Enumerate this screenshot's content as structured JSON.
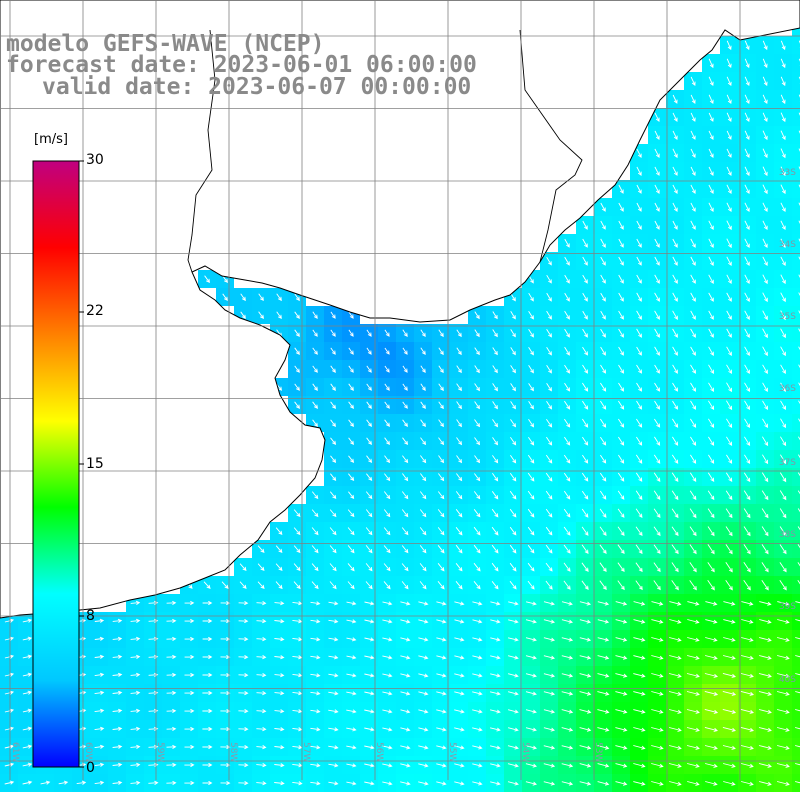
{
  "title": {
    "model": "modelo GEFS-WAVE (NCEP)",
    "forecast": "forecast date: 2023-06-01 06:00:00",
    "valid": "valid date: 2023-06-07 00:00:00"
  },
  "colorbar": {
    "unit": "[m/s]",
    "ticks": [
      "30",
      "22",
      "15",
      "8",
      "0"
    ],
    "min": 0,
    "max": 30,
    "stops": [
      "#0000ff",
      "#00c8ff",
      "#00ffff",
      "#00ff00",
      "#ffff00",
      "#ff8000",
      "#ff0000",
      "#c00080"
    ]
  },
  "map": {
    "field": "wind speed with direction arrows",
    "land_color": "#ffffff",
    "coast_color": "#000000",
    "grid_color": "#808080",
    "lat_labels": [
      "33S",
      "34S",
      "35S",
      "36S",
      "37S",
      "38S",
      "39S",
      "40S"
    ],
    "lon_labels": [
      "61W",
      "60W",
      "59W",
      "58W",
      "57W",
      "56W",
      "55W",
      "54W",
      "53W"
    ]
  }
}
